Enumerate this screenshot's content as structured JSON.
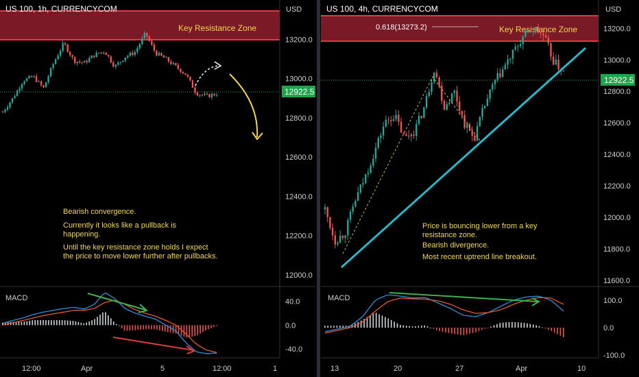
{
  "colors": {
    "background": "#000000",
    "bull": "#26a69a",
    "bear": "#ef5350",
    "price_badge": "#1fa64b",
    "resistance_zone": "#7a1a26",
    "resistance_line": "#e53945",
    "annotation_text": "#f3d84a",
    "trendline": "#28b7c8",
    "divergence_green": "#3fb24f",
    "divergence_red": "#e23d3d",
    "macd_line": "#2f8fd8",
    "signal_line": "#e8582e",
    "fib_line": "#b0b0b0"
  },
  "chart_data": [
    {
      "type": "candlestick",
      "title": "US 100, 1h, CURRENCYCOM",
      "currency_label": "USD",
      "yticks": [
        "13200.0",
        "13000.0",
        "12800.0",
        "12600.0",
        "12400.0",
        "12200.0",
        "12000.0"
      ],
      "ylim": [
        11940,
        13400
      ],
      "xticks": [
        "12:00",
        "Apr",
        "5",
        "12:00",
        "1"
      ],
      "last_price": "12922.5",
      "resistance_zone": {
        "label": "Key Resistance Zone",
        "range": [
          13180,
          13330
        ]
      },
      "price_path": [
        12830,
        12900,
        12990,
        13010,
        12950,
        13080,
        13180,
        13090,
        13080,
        13120,
        13140,
        13060,
        13110,
        13135,
        13230,
        13130,
        13100,
        13060,
        13020,
        12925,
        12910,
        12922
      ],
      "annotations": [
        "Bearish convergence.",
        "Currently it looks like a pullback is happening.",
        "Until the key resistance zone holds I expect the price to move lower further after pullbacks."
      ],
      "macd": {
        "label": "MACD",
        "yticks": [
          "40.0",
          "0.0",
          "-40.0"
        ],
        "ylim": [
          -55,
          65
        ],
        "macd_path": [
          3,
          8,
          12,
          18,
          22,
          25,
          28,
          30,
          27,
          35,
          55,
          45,
          28,
          20,
          15,
          10,
          0,
          -10,
          -30,
          -45,
          -48,
          -47
        ],
        "signal_path": [
          0,
          4,
          8,
          12,
          16,
          19,
          22,
          25,
          25,
          28,
          38,
          42,
          35,
          26,
          20,
          15,
          8,
          0,
          -15,
          -32,
          -42,
          -46
        ]
      }
    },
    {
      "type": "candlestick",
      "title": "US 100, 4h, CURRENCYCOM",
      "currency_label": "USD",
      "yticks": [
        "13200.0",
        "13000.0",
        "12800.0",
        "12600.0",
        "12400.0",
        "12200.0",
        "12000.0",
        "11800.0",
        "11600.0"
      ],
      "ylim": [
        11560,
        13380
      ],
      "xticks": [
        "13",
        "20",
        "27",
        "Apr",
        "10"
      ],
      "last_price": "12922.5",
      "resistance_zone": {
        "label": "Key Resistance Zone",
        "range": [
          13220,
          13370
        ]
      },
      "fib_label": "0.618(13273.2)",
      "price_path": [
        12050,
        11850,
        11900,
        12100,
        12250,
        12420,
        12600,
        12650,
        12500,
        12550,
        12700,
        12950,
        12700,
        12800,
        12600,
        12500,
        12700,
        12850,
        12950,
        13050,
        13150,
        13200,
        13150,
        12990,
        12922
      ],
      "trendline": [
        [
          0,
          11720
        ],
        [
          1,
          13130
        ]
      ],
      "annotations": [
        "Price is bouncing lower from a key resistance zone.",
        "Bearish divergence.",
        "Most recent uptrend line breakout."
      ],
      "macd": {
        "label": "MACD",
        "yticks": [
          "100.0",
          "0.0",
          "-100.0"
        ],
        "ylim": [
          -110,
          150
        ],
        "macd_path": [
          -15,
          -5,
          5,
          40,
          100,
          120,
          115,
          108,
          110,
          90,
          70,
          45,
          40,
          55,
          78,
          100,
          112,
          115,
          100,
          60
        ],
        "signal_path": [
          -20,
          -10,
          0,
          20,
          60,
          95,
          108,
          105,
          104,
          98,
          85,
          65,
          52,
          55,
          65,
          85,
          100,
          110,
          108,
          85
        ]
      }
    }
  ]
}
